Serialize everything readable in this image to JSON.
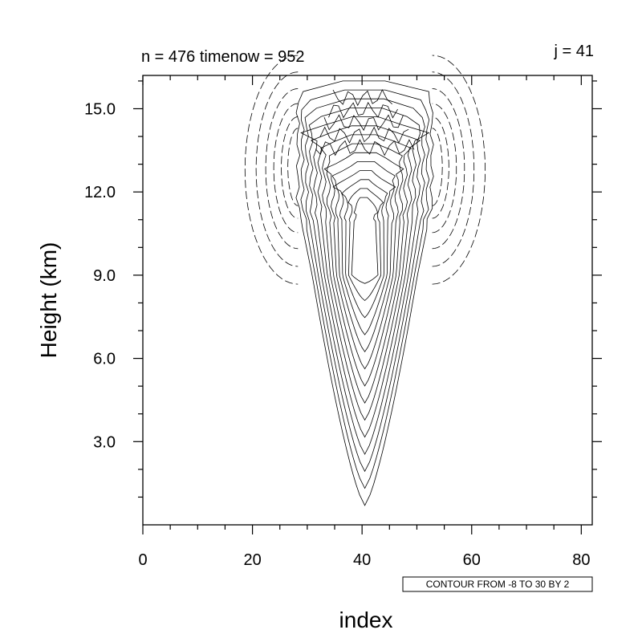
{
  "chart_data": {
    "type": "contour",
    "title_left": "n = 476 timenow = 952",
    "title_right": "j = 41",
    "xlabel": "index",
    "ylabel": "Height (km)",
    "xlim": [
      0,
      82
    ],
    "ylim": [
      0,
      16.2
    ],
    "x_ticks": [
      0,
      20,
      40,
      60,
      80
    ],
    "x_tick_labels": [
      "0",
      "20",
      "40",
      "60",
      "80"
    ],
    "y_ticks": [
      3,
      6,
      9,
      12,
      15
    ],
    "y_tick_labels": [
      "3.0",
      "6.0",
      "9.0",
      "12.0",
      "15.0"
    ],
    "contour_info": "CONTOUR FROM -8 TO 30 BY 2",
    "contour_levels": {
      "min": -8,
      "max": 30,
      "step": 2
    },
    "negative_contours": "dashed",
    "positive_contours": "solid",
    "field_center_index": 40.5,
    "field_top_km": 16.0
  }
}
